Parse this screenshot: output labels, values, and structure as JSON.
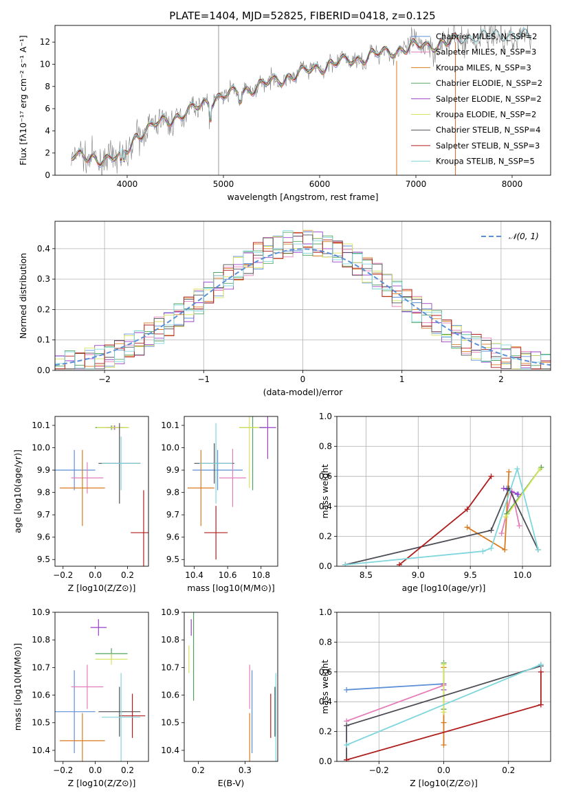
{
  "title": "PLATE=1404, MJD=52825, FIBERID=0418, z=0.125",
  "colors": {
    "chabrier_miles": "#5b8fd6",
    "salpeter_miles": "#e37cb7",
    "kroupa_miles": "#d87a1e",
    "chabrier_elodie": "#4fa35f",
    "salpeter_elodie": "#9a3fc9",
    "kroupa_elodie": "#d7e35a",
    "chabrier_stelib": "#4d4d55",
    "salpeter_stelib": "#b01c1c",
    "kroupa_stelib": "#7fd6dc",
    "data": "#808080",
    "grid": "#b0b0b0"
  },
  "chart_data": [
    {
      "type": "line",
      "id": "spectrum",
      "xlabel": "wavelength [Angstrom, rest frame]",
      "ylabel": "Flux [fλ10⁻¹⁷ erg cm⁻² s⁻¹ A⁻¹]",
      "xlim": [
        3250,
        8400
      ],
      "ylim": [
        0,
        13.5
      ],
      "xticks": [
        4000,
        5000,
        6000,
        7000,
        8000
      ],
      "yticks": [
        0,
        2,
        4,
        6,
        8,
        10,
        12
      ],
      "grid": false,
      "legend_position": "right",
      "legend": [
        "Chabrier MILES, N_SSP=2",
        "Salpeter MILES, N_SSP=3",
        "Kroupa MILES, N_SSP=3",
        "Chabrier ELODIE, N_SSP=2",
        "Salpeter ELODIE, N_SSP=2",
        "Kroupa ELODIE, N_SSP=2",
        "Chabrier STELIB, N_SSP=4",
        "Salpeter STELIB, N_SSP=3",
        "Kroupa STELIB, N_SSP=5"
      ],
      "continuum": {
        "wavelength": [
          3420,
          3600,
          3800,
          3950,
          4100,
          4300,
          4500,
          4700,
          4900,
          5200,
          5500,
          5800,
          6100,
          6400,
          6700,
          7000,
          7300,
          7600,
          8000,
          8200
        ],
        "flux": [
          1.9,
          1.4,
          1.6,
          1.6,
          3.6,
          4.6,
          5.2,
          6.0,
          6.9,
          7.6,
          8.4,
          9.2,
          10.0,
          10.5,
          11.1,
          11.6,
          11.9,
          12.4,
          12.6,
          12.4
        ]
      }
    },
    {
      "type": "line",
      "id": "residuals",
      "xlabel": "(data-model)/error",
      "ylabel": "Normed distribution",
      "xlim": [
        -2.5,
        2.5
      ],
      "ylim": [
        0,
        0.49
      ],
      "xticks": [
        -2,
        -1,
        0,
        1,
        2
      ],
      "yticks": [
        0.0,
        0.1,
        0.2,
        0.3,
        0.4
      ],
      "grid": true,
      "legend": [
        "𝒩(0, 1)"
      ],
      "legend_position": "top-right"
    },
    {
      "type": "scatter",
      "id": "age_vs_Z",
      "xlabel": "Z [log10(Z/Z⊙)]",
      "ylabel": "age  [log10(age/yr)]",
      "xlim": [
        -0.25,
        0.33
      ],
      "ylim": [
        9.47,
        10.14
      ],
      "xticks": [
        -0.2,
        0.0,
        0.2
      ],
      "yticks": [
        9.5,
        9.6,
        9.7,
        9.8,
        9.9,
        10.0,
        10.1
      ],
      "points": [
        {
          "model": "chabrier_miles",
          "x": -0.13,
          "y": 9.9,
          "xerr": 0.13,
          "yerr": 0.09
        },
        {
          "model": "salpeter_miles",
          "x": -0.05,
          "y": 9.865,
          "xerr": 0.1,
          "yerr": 0.07
        },
        {
          "model": "kroupa_miles",
          "x": -0.08,
          "y": 9.82,
          "xerr": 0.14,
          "yerr": 0.17
        },
        {
          "model": "chabrier_elodie",
          "x": 0.1,
          "y": 10.09,
          "xerr": 0.1,
          "yerr": 0.01
        },
        {
          "model": "salpeter_elodie",
          "x": 0.12,
          "y": 10.09,
          "xerr": 0.05,
          "yerr": 0.01
        },
        {
          "model": "kroupa_elodie",
          "x": 0.11,
          "y": 10.09,
          "xerr": 0.1,
          "yerr": 0.01
        },
        {
          "model": "chabrier_stelib",
          "x": 0.15,
          "y": 9.93,
          "xerr": 0.13,
          "yerr": 0.18
        },
        {
          "model": "salpeter_stelib",
          "x": 0.3,
          "y": 9.62,
          "xerr": 0.08,
          "yerr": 0.19
        },
        {
          "model": "kroupa_stelib",
          "x": 0.16,
          "y": 9.93,
          "xerr": 0.12,
          "yerr": 0.12
        }
      ]
    },
    {
      "type": "scatter",
      "id": "age_vs_mass",
      "xlabel": "mass [log10(M/M⊙)]",
      "ylabel": "",
      "xlim": [
        10.34,
        10.9
      ],
      "ylim": [
        9.47,
        10.14
      ],
      "xticks": [
        10.4,
        10.6,
        10.8
      ],
      "yticks": [
        9.5,
        9.6,
        9.7,
        9.8,
        9.9,
        10.0,
        10.1
      ],
      "points": [
        {
          "model": "chabrier_miles",
          "x": 10.54,
          "y": 9.9,
          "xerr": 0.15,
          "yerr": 0.09
        },
        {
          "model": "salpeter_miles",
          "x": 10.63,
          "y": 9.865,
          "xerr": 0.08,
          "yerr": 0.13
        },
        {
          "model": "kroupa_miles",
          "x": 10.44,
          "y": 9.82,
          "xerr": 0.08,
          "yerr": 0.17
        },
        {
          "model": "chabrier_elodie",
          "x": 10.75,
          "y": 10.09,
          "xerr": 0.08,
          "yerr": 0.28
        },
        {
          "model": "salpeter_elodie",
          "x": 10.84,
          "y": 10.09,
          "xerr": 0.05,
          "yerr": 0.14
        },
        {
          "model": "kroupa_elodie",
          "x": 10.73,
          "y": 10.09,
          "xerr": 0.06,
          "yerr": 0.27
        },
        {
          "model": "chabrier_stelib",
          "x": 10.52,
          "y": 9.93,
          "xerr": 0.12,
          "yerr": 0.09
        },
        {
          "model": "salpeter_stelib",
          "x": 10.53,
          "y": 9.62,
          "xerr": 0.07,
          "yerr": 0.12
        },
        {
          "model": "kroupa_stelib",
          "x": 10.53,
          "y": 9.93,
          "xerr": 0.1,
          "yerr": 0.18
        }
      ]
    },
    {
      "type": "line",
      "id": "weight_vs_age",
      "xlabel": "age  [log10(age/yr)]",
      "ylabel": "mass weight",
      "xlim": [
        8.22,
        10.27
      ],
      "ylim": [
        0,
        1
      ],
      "xticks": [
        8.5,
        9.0,
        9.5,
        10.0
      ],
      "yticks": [
        0.0,
        0.2,
        0.4,
        0.6,
        0.8,
        1.0
      ],
      "grid": true,
      "series": [
        {
          "model": "chabrier_miles",
          "x": [
            9.85,
            9.95
          ],
          "y": [
            0.52,
            0.48
          ]
        },
        {
          "model": "salpeter_miles",
          "x": [
            9.8,
            9.9,
            9.97
          ],
          "y": [
            0.22,
            0.5,
            0.27
          ]
        },
        {
          "model": "kroupa_miles",
          "x": [
            9.47,
            9.83,
            9.87
          ],
          "y": [
            0.26,
            0.11,
            0.63
          ]
        },
        {
          "model": "chabrier_elodie",
          "x": [
            9.85,
            10.18
          ],
          "y": [
            0.35,
            0.66
          ]
        },
        {
          "model": "salpeter_elodie",
          "x": [
            9.82,
            9.96
          ],
          "y": [
            0.52,
            0.48
          ]
        },
        {
          "model": "kroupa_elodie",
          "x": [
            9.84,
            10.17
          ],
          "y": [
            0.33,
            0.65
          ]
        },
        {
          "model": "chabrier_stelib",
          "x": [
            8.3,
            9.7,
            9.87,
            10.15
          ],
          "y": [
            0.01,
            0.24,
            0.52,
            0.11
          ]
        },
        {
          "model": "salpeter_stelib",
          "x": [
            8.82,
            9.47,
            9.7
          ],
          "y": [
            0.01,
            0.38,
            0.6
          ]
        },
        {
          "model": "kroupa_stelib",
          "x": [
            8.3,
            9.62,
            9.7,
            9.95,
            10.15
          ],
          "y": [
            0.01,
            0.1,
            0.12,
            0.65,
            0.11
          ]
        }
      ]
    },
    {
      "type": "scatter",
      "id": "mass_vs_Z",
      "xlabel": "Z [log10(Z/Z⊙)]",
      "ylabel": "mass [log10(M/M⊙)]",
      "xlim": [
        -0.25,
        0.33
      ],
      "ylim": [
        10.36,
        10.9
      ],
      "xticks": [
        -0.2,
        0.0,
        0.2
      ],
      "yticks": [
        10.4,
        10.5,
        10.6,
        10.7,
        10.8,
        10.9
      ],
      "points": [
        {
          "model": "chabrier_miles",
          "x": -0.13,
          "y": 10.54,
          "xerr": 0.13,
          "yerr": 0.15
        },
        {
          "model": "salpeter_miles",
          "x": -0.05,
          "y": 10.63,
          "xerr": 0.1,
          "yerr": 0.08
        },
        {
          "model": "kroupa_miles",
          "x": -0.08,
          "y": 10.435,
          "xerr": 0.14,
          "yerr": 0.1
        },
        {
          "model": "chabrier_elodie",
          "x": 0.1,
          "y": 10.75,
          "xerr": 0.1,
          "yerr": 0.02
        },
        {
          "model": "salpeter_elodie",
          "x": 0.02,
          "y": 10.845,
          "xerr": 0.05,
          "yerr": 0.03
        },
        {
          "model": "kroupa_elodie",
          "x": 0.1,
          "y": 10.73,
          "xerr": 0.1,
          "yerr": 0.02
        },
        {
          "model": "chabrier_stelib",
          "x": 0.15,
          "y": 10.54,
          "xerr": 0.13,
          "yerr": 0.09
        },
        {
          "model": "salpeter_stelib",
          "x": 0.23,
          "y": 10.525,
          "xerr": 0.08,
          "yerr": 0.08
        },
        {
          "model": "kroupa_stelib",
          "x": 0.16,
          "y": 10.52,
          "xerr": 0.12,
          "yerr": 0.16
        }
      ]
    },
    {
      "type": "scatter",
      "id": "mass_vs_ebv",
      "xlabel": "E(B-V)",
      "ylabel": "",
      "xlim": [
        0.17,
        0.37
      ],
      "ylim": [
        10.36,
        10.9
      ],
      "xticks": [
        0.2,
        0.3
      ],
      "yticks": [
        10.4,
        10.5,
        10.6,
        10.7,
        10.8,
        10.9
      ],
      "points": [
        {
          "model": "chabrier_miles",
          "x": 0.315,
          "y": 10.54,
          "xerr": 0,
          "yerr": 0.15
        },
        {
          "model": "salpeter_miles",
          "x": 0.31,
          "y": 10.63,
          "xerr": 0,
          "yerr": 0.08
        },
        {
          "model": "kroupa_miles",
          "x": 0.31,
          "y": 10.435,
          "xerr": 0,
          "yerr": 0.1
        },
        {
          "model": "chabrier_elodie",
          "x": 0.19,
          "y": 10.75,
          "xerr": 0,
          "yerr": 0.17
        },
        {
          "model": "salpeter_elodie",
          "x": 0.185,
          "y": 10.845,
          "xerr": 0,
          "yerr": 0.03
        },
        {
          "model": "kroupa_elodie",
          "x": 0.18,
          "y": 10.73,
          "xerr": 0,
          "yerr": 0.05
        },
        {
          "model": "chabrier_stelib",
          "x": 0.364,
          "y": 10.54,
          "xerr": 0,
          "yerr": 0.09
        },
        {
          "model": "salpeter_stelib",
          "x": 0.355,
          "y": 10.525,
          "xerr": 0,
          "yerr": 0.08
        },
        {
          "model": "kroupa_stelib",
          "x": 0.366,
          "y": 10.52,
          "xerr": 0,
          "yerr": 0.16
        }
      ]
    },
    {
      "type": "line",
      "id": "weight_vs_Z",
      "xlabel": "Z [log10(Z/Z⊙)]",
      "ylabel": "mass weight",
      "xlim": [
        -0.33,
        0.33
      ],
      "ylim": [
        0,
        1
      ],
      "xticks": [
        -0.2,
        0.0,
        0.2
      ],
      "yticks": [
        0.0,
        0.2,
        0.4,
        0.6,
        0.8,
        1.0
      ],
      "grid": true,
      "series": [
        {
          "model": "chabrier_miles",
          "x": [
            -0.3,
            0.0
          ],
          "y": [
            0.48,
            0.52
          ]
        },
        {
          "model": "salpeter_miles",
          "x": [
            -0.3,
            0.0
          ],
          "y": [
            0.27,
            0.51
          ]
        },
        {
          "model": "kroupa_miles",
          "x": [
            0.0,
            0.0,
            0.0
          ],
          "y": [
            0.11,
            0.26,
            0.63
          ]
        },
        {
          "model": "chabrier_elodie",
          "x": [
            0.0,
            0.0
          ],
          "y": [
            0.35,
            0.66
          ]
        },
        {
          "model": "salpeter_elodie",
          "x": [
            0.0,
            0.0
          ],
          "y": [
            0.48,
            0.52
          ]
        },
        {
          "model": "kroupa_elodie",
          "x": [
            0.0,
            0.0
          ],
          "y": [
            0.33,
            0.65
          ]
        },
        {
          "model": "chabrier_stelib",
          "x": [
            -0.3,
            -0.3,
            0.3
          ],
          "y": [
            0.01,
            0.24,
            0.64
          ]
        },
        {
          "model": "salpeter_stelib",
          "x": [
            -0.3,
            0.3,
            0.3
          ],
          "y": [
            0.01,
            0.38,
            0.6
          ]
        },
        {
          "model": "kroupa_stelib",
          "x": [
            -0.3,
            -0.3,
            0.3
          ],
          "y": [
            0.11,
            0.11,
            0.65
          ]
        }
      ]
    }
  ]
}
